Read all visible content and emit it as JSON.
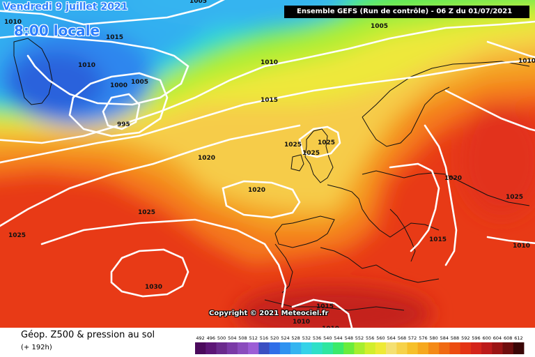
{
  "header": {
    "date": "Vendredi 9 juillet 2021",
    "time": "8:00 locale",
    "run": "Ensemble GEFS  (Run de contrôle)  - 06 Z du 01/07/2021"
  },
  "copyright": "Copyright © 2021 Meteociel.fr",
  "footer": {
    "title": "Géop. Z500 & pression au sol",
    "subtitle": "(+ 192h)"
  },
  "isobar_labels": [
    {
      "id": "a",
      "value": "1010"
    },
    {
      "id": "b",
      "value": "1005"
    },
    {
      "id": "c",
      "value": "1015"
    },
    {
      "id": "d",
      "value": "1005"
    },
    {
      "id": "e",
      "value": "1010"
    },
    {
      "id": "f",
      "value": "1000"
    },
    {
      "id": "g",
      "value": "1005"
    },
    {
      "id": "h",
      "value": "995"
    },
    {
      "id": "i",
      "value": "1010"
    },
    {
      "id": "j",
      "value": "1015"
    },
    {
      "id": "k",
      "value": "1010"
    },
    {
      "id": "l",
      "value": "1025"
    },
    {
      "id": "m",
      "value": "1025"
    },
    {
      "id": "n",
      "value": "1025"
    },
    {
      "id": "o",
      "value": "1020"
    },
    {
      "id": "p",
      "value": "1020"
    },
    {
      "id": "q",
      "value": "1020"
    },
    {
      "id": "r",
      "value": "1025"
    },
    {
      "id": "s",
      "value": "1025"
    },
    {
      "id": "t",
      "value": "1025"
    },
    {
      "id": "u",
      "value": "1015"
    },
    {
      "id": "v",
      "value": "1010"
    },
    {
      "id": "w",
      "value": "1030"
    },
    {
      "id": "x",
      "value": "1015"
    },
    {
      "id": "y",
      "value": "1010"
    },
    {
      "id": "z",
      "value": "1010"
    }
  ],
  "legend": {
    "values": [
      "492",
      "496",
      "500",
      "504",
      "508",
      "512",
      "516",
      "520",
      "524",
      "528",
      "532",
      "536",
      "540",
      "544",
      "548",
      "552",
      "556",
      "560",
      "564",
      "568",
      "572",
      "576",
      "580",
      "584",
      "588",
      "592",
      "596",
      "600",
      "604",
      "608",
      "612"
    ],
    "colors": [
      "#4b0a5c",
      "#5c1676",
      "#6a2a8c",
      "#7a3aa6",
      "#8a4cbd",
      "#9c5ed6",
      "#3a4ec2",
      "#2f6ee8",
      "#2f92f0",
      "#35b4f0",
      "#36d2e8",
      "#2fe0c8",
      "#2fe6a0",
      "#3aea6a",
      "#6aec3c",
      "#a6ee2e",
      "#d2ee2c",
      "#eeea36",
      "#f4e072",
      "#f6d24a",
      "#f6c02a",
      "#f6a81e",
      "#f48a16",
      "#f06a12",
      "#ec4c10",
      "#e43414",
      "#d4241a",
      "#bc1a1a",
      "#9a1414",
      "#6e0e0e",
      "#3a0606"
    ]
  }
}
